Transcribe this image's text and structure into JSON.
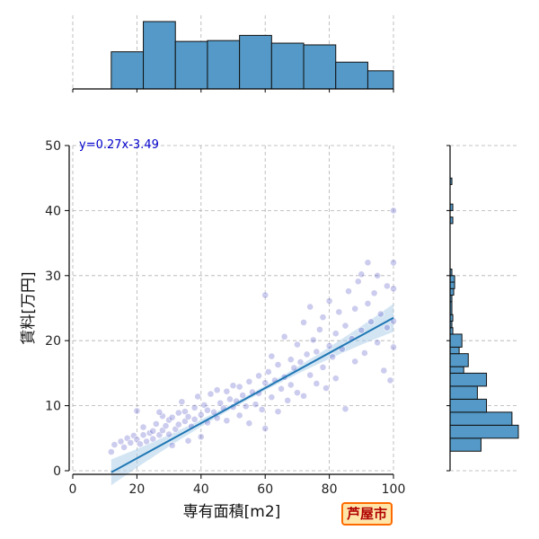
{
  "badge": "芦屋市",
  "colors": {
    "hist": "#5499c7",
    "hist_edge": "#111111",
    "points": "#3333bb",
    "fit": "#1f77b4",
    "ci": "#aed0ea",
    "grid": "#b0b0b0"
  },
  "chart_data": {
    "type": "scatter",
    "xlabel": "専有面積[m2]",
    "ylabel": "賃料[万円]",
    "xlim": [
      0,
      100
    ],
    "ylim": [
      0,
      50
    ],
    "x_ticks": [
      "0",
      "20",
      "40",
      "60",
      "80",
      "100"
    ],
    "y_ticks": [
      "0",
      "10",
      "20",
      "30",
      "40",
      "50"
    ],
    "grid": true,
    "regression": {
      "label": "y=0.27x-3.49",
      "slope": 0.27,
      "intercept": -3.49,
      "x_start": 12,
      "x_end": 100
    },
    "marginal_x_hist": {
      "bin_edges": [
        12,
        22,
        32,
        42,
        52,
        62,
        72,
        82,
        92,
        100
      ],
      "counts": [
        43,
        78,
        55,
        56,
        62,
        53,
        51,
        31,
        21
      ]
    },
    "marginal_y_hist": {
      "bin_edges": [
        0,
        3,
        5,
        7,
        9,
        11,
        13,
        15,
        16,
        18,
        19,
        21,
        22,
        23,
        24,
        26,
        27,
        28,
        29,
        30,
        31,
        32,
        33,
        38,
        39,
        40,
        41,
        44,
        45
      ],
      "counts": [
        0,
        34,
        75,
        68,
        40,
        30,
        40,
        15,
        20,
        10,
        13,
        3,
        2,
        3,
        2,
        2,
        4,
        5,
        5,
        2,
        0,
        0,
        0,
        3,
        0,
        3,
        0,
        2
      ]
    },
    "points": [
      [
        12,
        2.9
      ],
      [
        13,
        4.0
      ],
      [
        15,
        4.5
      ],
      [
        16,
        3.6
      ],
      [
        17,
        5.0
      ],
      [
        18,
        4.3
      ],
      [
        19,
        5.4
      ],
      [
        20,
        4.8
      ],
      [
        20,
        9.2
      ],
      [
        21,
        4.1
      ],
      [
        22,
        5.5
      ],
      [
        22,
        6.7
      ],
      [
        23,
        4.5
      ],
      [
        24,
        5.8
      ],
      [
        25,
        6.1
      ],
      [
        25,
        4.9
      ],
      [
        26,
        7.2
      ],
      [
        27,
        5.5
      ],
      [
        28,
        8.4
      ],
      [
        28,
        6.2
      ],
      [
        29,
        6.9
      ],
      [
        30,
        7.8
      ],
      [
        30,
        5.6
      ],
      [
        31,
        8.2
      ],
      [
        32,
        6.4
      ],
      [
        33,
        8.9
      ],
      [
        33,
        7.1
      ],
      [
        34,
        10.6
      ],
      [
        35,
        7.6
      ],
      [
        35,
        9.1
      ],
      [
        36,
        8.3
      ],
      [
        37,
        6.8
      ],
      [
        38,
        9.7
      ],
      [
        38,
        7.9
      ],
      [
        39,
        11.4
      ],
      [
        40,
        8.6
      ],
      [
        40,
        5.2
      ],
      [
        41,
        10.1
      ],
      [
        42,
        9.3
      ],
      [
        42,
        7.4
      ],
      [
        43,
        11.8
      ],
      [
        44,
        9.0
      ],
      [
        45,
        8.1
      ],
      [
        45,
        12.4
      ],
      [
        46,
        10.4
      ],
      [
        47,
        9.6
      ],
      [
        48,
        12.2
      ],
      [
        48,
        7.7
      ],
      [
        49,
        11.0
      ],
      [
        50,
        9.8
      ],
      [
        50,
        13.1
      ],
      [
        51,
        10.7
      ],
      [
        52,
        8.5
      ],
      [
        52,
        12.9
      ],
      [
        53,
        11.6
      ],
      [
        54,
        9.9
      ],
      [
        55,
        13.7
      ],
      [
        55,
        7.3
      ],
      [
        56,
        12.1
      ],
      [
        57,
        10.2
      ],
      [
        58,
        14.6
      ],
      [
        58,
        11.9
      ],
      [
        59,
        9.4
      ],
      [
        60,
        27.0
      ],
      [
        60,
        13.5
      ],
      [
        60,
        6.5
      ],
      [
        61,
        15.2
      ],
      [
        62,
        11.3
      ],
      [
        62,
        17.6
      ],
      [
        63,
        13.9
      ],
      [
        64,
        9.1
      ],
      [
        64,
        16.3
      ],
      [
        65,
        12.6
      ],
      [
        66,
        14.4
      ],
      [
        66,
        20.6
      ],
      [
        67,
        10.8
      ],
      [
        68,
        17.1
      ],
      [
        68,
        13.2
      ],
      [
        69,
        15.8
      ],
      [
        70,
        12.0
      ],
      [
        70,
        19.4
      ],
      [
        71,
        16.7
      ],
      [
        72,
        22.8
      ],
      [
        72,
        11.5
      ],
      [
        73,
        17.9
      ],
      [
        74,
        14.7
      ],
      [
        74,
        25.2
      ],
      [
        75,
        20.1
      ],
      [
        76,
        13.4
      ],
      [
        76,
        18.3
      ],
      [
        77,
        21.7
      ],
      [
        78,
        15.9
      ],
      [
        78,
        23.6
      ],
      [
        79,
        12.7
      ],
      [
        80,
        19.2
      ],
      [
        80,
        26.1
      ],
      [
        81,
        17.5
      ],
      [
        82,
        21.1
      ],
      [
        82,
        14.2
      ],
      [
        83,
        24.4
      ],
      [
        84,
        18.7
      ],
      [
        85,
        22.3
      ],
      [
        85,
        9.5
      ],
      [
        86,
        27.6
      ],
      [
        87,
        20.3
      ],
      [
        88,
        16.8
      ],
      [
        88,
        24.9
      ],
      [
        89,
        29.1
      ],
      [
        90,
        21.6
      ],
      [
        90,
        30.2
      ],
      [
        91,
        18.1
      ],
      [
        92,
        25.7
      ],
      [
        92,
        32.0
      ],
      [
        93,
        22.9
      ],
      [
        94,
        27.3
      ],
      [
        95,
        19.7
      ],
      [
        95,
        30.0
      ],
      [
        96,
        24.1
      ],
      [
        97,
        15.4
      ],
      [
        98,
        28.4
      ],
      [
        98,
        22.0
      ],
      [
        99,
        13.9
      ],
      [
        100,
        40.0
      ],
      [
        100,
        32.0
      ],
      [
        100,
        28.0
      ],
      [
        100,
        23.0
      ],
      [
        100,
        19.0
      ],
      [
        27,
        9.0
      ],
      [
        31,
        3.9
      ],
      [
        36,
        4.6
      ]
    ]
  }
}
